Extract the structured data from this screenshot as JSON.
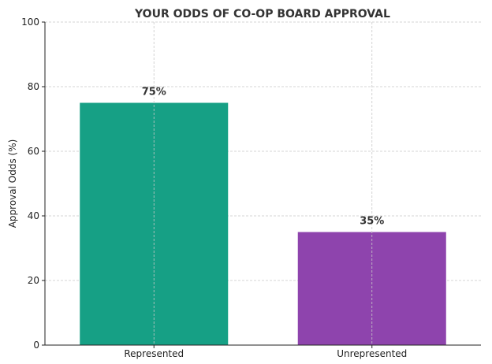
{
  "chart_data": {
    "type": "bar",
    "title": "YOUR ODDS OF CO-OP BOARD APPROVAL",
    "xlabel": "",
    "ylabel": "Approval Odds (%)",
    "ylim": [
      0,
      100
    ],
    "yticks": [
      0,
      20,
      40,
      60,
      80,
      100
    ],
    "categories": [
      "Represented",
      "Unrepresented"
    ],
    "values": [
      75,
      35
    ],
    "data_labels": [
      "75%",
      "35%"
    ],
    "colors": [
      "#16a085",
      "#8e44ad"
    ],
    "grid": true
  }
}
